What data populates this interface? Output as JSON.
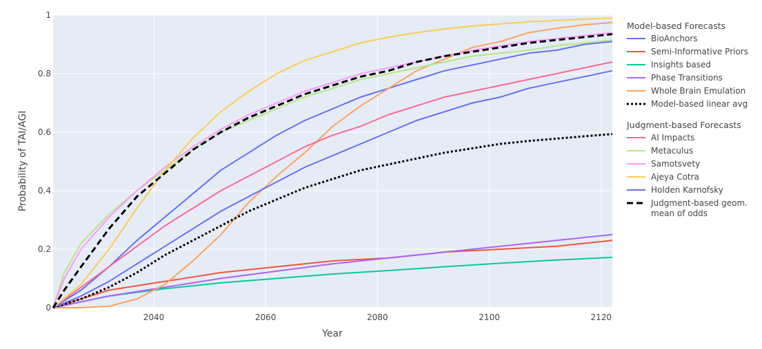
{
  "chart_data": {
    "type": "line",
    "xlabel": "Year",
    "ylabel": "Probability of TAI/AGI",
    "xlim": [
      2022,
      2122
    ],
    "ylim": [
      0,
      1
    ],
    "x_ticks": [
      2040,
      2060,
      2080,
      2100,
      2120
    ],
    "y_ticks": [
      0,
      0.2,
      0.4,
      0.6,
      0.8,
      1
    ],
    "y_tick_labels": [
      "0",
      "0.2",
      "0.4",
      "0.6",
      "0.8",
      "1"
    ],
    "grid": true,
    "legend_position": "right",
    "legend_groups": [
      {
        "title": "Model-based Forecasts",
        "series": [
          {
            "name": "BioAnchors",
            "color": "#636efa",
            "dash": "solid",
            "x": [
              2022,
              2027,
              2032,
              2037,
              2042,
              2047,
              2052,
              2057,
              2062,
              2067,
              2072,
              2077,
              2082,
              2087,
              2092,
              2097,
              2102,
              2107,
              2112,
              2117,
              2122
            ],
            "y": [
              0,
              0.06,
              0.14,
              0.23,
              0.31,
              0.39,
              0.47,
              0.53,
              0.59,
              0.64,
              0.68,
              0.72,
              0.75,
              0.78,
              0.81,
              0.83,
              0.85,
              0.87,
              0.88,
              0.9,
              0.91
            ]
          },
          {
            "name": "Semi-Informative Priors",
            "color": "#ef553b",
            "dash": "solid",
            "x": [
              2022,
              2032,
              2042,
              2052,
              2062,
              2072,
              2082,
              2092,
              2102,
              2112,
              2122
            ],
            "y": [
              0,
              0.06,
              0.09,
              0.12,
              0.14,
              0.16,
              0.17,
              0.19,
              0.2,
              0.21,
              0.23
            ]
          },
          {
            "name": "Insights based",
            "color": "#00cc96",
            "dash": "solid",
            "x": [
              2022,
              2032,
              2042,
              2052,
              2062,
              2072,
              2082,
              2092,
              2102,
              2112,
              2122
            ],
            "y": [
              0,
              0.04,
              0.065,
              0.085,
              0.1,
              0.115,
              0.127,
              0.14,
              0.152,
              0.163,
              0.172
            ]
          },
          {
            "name": "Phase Transitions",
            "color": "#ab63fa",
            "dash": "solid",
            "x": [
              2022,
              2032,
              2042,
              2052,
              2062,
              2072,
              2082,
              2092,
              2102,
              2112,
              2122
            ],
            "y": [
              0,
              0.04,
              0.07,
              0.1,
              0.125,
              0.15,
              0.17,
              0.19,
              0.21,
              0.23,
              0.25
            ]
          },
          {
            "name": "Whole Brain Emulation",
            "color": "#ffa15a",
            "dash": "solid",
            "x": [
              2022,
              2027,
              2032,
              2037,
              2042,
              2047,
              2052,
              2057,
              2062,
              2067,
              2072,
              2077,
              2082,
              2087,
              2092,
              2097,
              2102,
              2107,
              2112,
              2117,
              2122
            ],
            "y": [
              0,
              0.0,
              0.005,
              0.03,
              0.08,
              0.16,
              0.25,
              0.36,
              0.45,
              0.53,
              0.62,
              0.69,
              0.75,
              0.81,
              0.85,
              0.89,
              0.91,
              0.94,
              0.955,
              0.967,
              0.975
            ]
          },
          {
            "name": "Model-based linear avg",
            "color": "#000000",
            "dash": "dot",
            "x": [
              2022,
              2027,
              2032,
              2037,
              2042,
              2047,
              2052,
              2057,
              2062,
              2067,
              2072,
              2077,
              2082,
              2087,
              2092,
              2097,
              2102,
              2107,
              2112,
              2117,
              2122
            ],
            "y": [
              0,
              0.03,
              0.07,
              0.12,
              0.18,
              0.23,
              0.28,
              0.33,
              0.37,
              0.41,
              0.44,
              0.47,
              0.49,
              0.51,
              0.53,
              0.545,
              0.56,
              0.57,
              0.578,
              0.586,
              0.594
            ]
          }
        ]
      },
      {
        "title": "Judgment-based Forecasts",
        "series": [
          {
            "name": "AI Impacts",
            "color": "#ff6692",
            "dash": "solid",
            "x": [
              2022,
              2027,
              2032,
              2037,
              2042,
              2047,
              2052,
              2057,
              2062,
              2067,
              2072,
              2077,
              2082,
              2087,
              2092,
              2097,
              2102,
              2107,
              2112,
              2117,
              2122
            ],
            "y": [
              0,
              0.07,
              0.14,
              0.21,
              0.28,
              0.34,
              0.4,
              0.45,
              0.5,
              0.55,
              0.59,
              0.62,
              0.66,
              0.69,
              0.72,
              0.74,
              0.76,
              0.78,
              0.8,
              0.82,
              0.84
            ]
          },
          {
            "name": "Metaculus",
            "color": "#b6e880",
            "dash": "solid",
            "x": [
              2022,
              2024,
              2027,
              2032,
              2037,
              2042,
              2047,
              2052,
              2057,
              2062,
              2067,
              2072,
              2077,
              2082,
              2087,
              2092,
              2097,
              2102,
              2107,
              2112,
              2117,
              2122
            ],
            "y": [
              0,
              0.12,
              0.22,
              0.32,
              0.4,
              0.47,
              0.54,
              0.6,
              0.64,
              0.68,
              0.72,
              0.75,
              0.78,
              0.8,
              0.82,
              0.84,
              0.86,
              0.87,
              0.88,
              0.895,
              0.905,
              0.915
            ]
          },
          {
            "name": "Samotsvety",
            "color": "#ff97ff",
            "dash": "solid",
            "x": [
              2022,
              2024,
              2027,
              2032,
              2037,
              2042,
              2047,
              2052,
              2057,
              2062,
              2067,
              2072,
              2077,
              2082,
              2087,
              2092,
              2097,
              2102,
              2107,
              2112,
              2117,
              2122
            ],
            "y": [
              0,
              0.1,
              0.2,
              0.31,
              0.4,
              0.48,
              0.55,
              0.61,
              0.66,
              0.7,
              0.74,
              0.77,
              0.8,
              0.82,
              0.84,
              0.86,
              0.88,
              0.895,
              0.91,
              0.92,
              0.93,
              0.94
            ]
          },
          {
            "name": "Ajeya Cotra",
            "color": "#fecb52",
            "dash": "solid",
            "x": [
              2022,
              2027,
              2032,
              2037,
              2042,
              2047,
              2052,
              2057,
              2062,
              2067,
              2072,
              2077,
              2082,
              2087,
              2092,
              2097,
              2102,
              2107,
              2112,
              2117,
              2122
            ],
            "y": [
              0,
              0.08,
              0.2,
              0.34,
              0.47,
              0.58,
              0.67,
              0.74,
              0.8,
              0.845,
              0.875,
              0.905,
              0.925,
              0.94,
              0.953,
              0.963,
              0.97,
              0.977,
              0.982,
              0.986,
              0.99
            ]
          },
          {
            "name": "Holden Karnofsky",
            "color": "#636efa",
            "dash": "solid",
            "x": [
              2022,
              2027,
              2032,
              2037,
              2042,
              2047,
              2052,
              2057,
              2062,
              2067,
              2072,
              2077,
              2082,
              2087,
              2092,
              2097,
              2102,
              2107,
              2112,
              2117,
              2122
            ],
            "y": [
              0,
              0.04,
              0.09,
              0.15,
              0.21,
              0.27,
              0.33,
              0.38,
              0.43,
              0.48,
              0.52,
              0.56,
              0.6,
              0.64,
              0.67,
              0.7,
              0.72,
              0.75,
              0.77,
              0.79,
              0.81
            ]
          },
          {
            "name": "Judgment-based geom. mean of odds",
            "color": "#000000",
            "dash": "dash",
            "x": [
              2022,
              2024,
              2027,
              2032,
              2037,
              2042,
              2047,
              2052,
              2057,
              2062,
              2067,
              2072,
              2077,
              2082,
              2087,
              2092,
              2097,
              2102,
              2107,
              2112,
              2117,
              2122
            ],
            "y": [
              0,
              0.06,
              0.14,
              0.27,
              0.38,
              0.46,
              0.54,
              0.6,
              0.65,
              0.69,
              0.73,
              0.76,
              0.79,
              0.81,
              0.84,
              0.86,
              0.875,
              0.89,
              0.905,
              0.915,
              0.925,
              0.935
            ]
          }
        ]
      }
    ]
  }
}
